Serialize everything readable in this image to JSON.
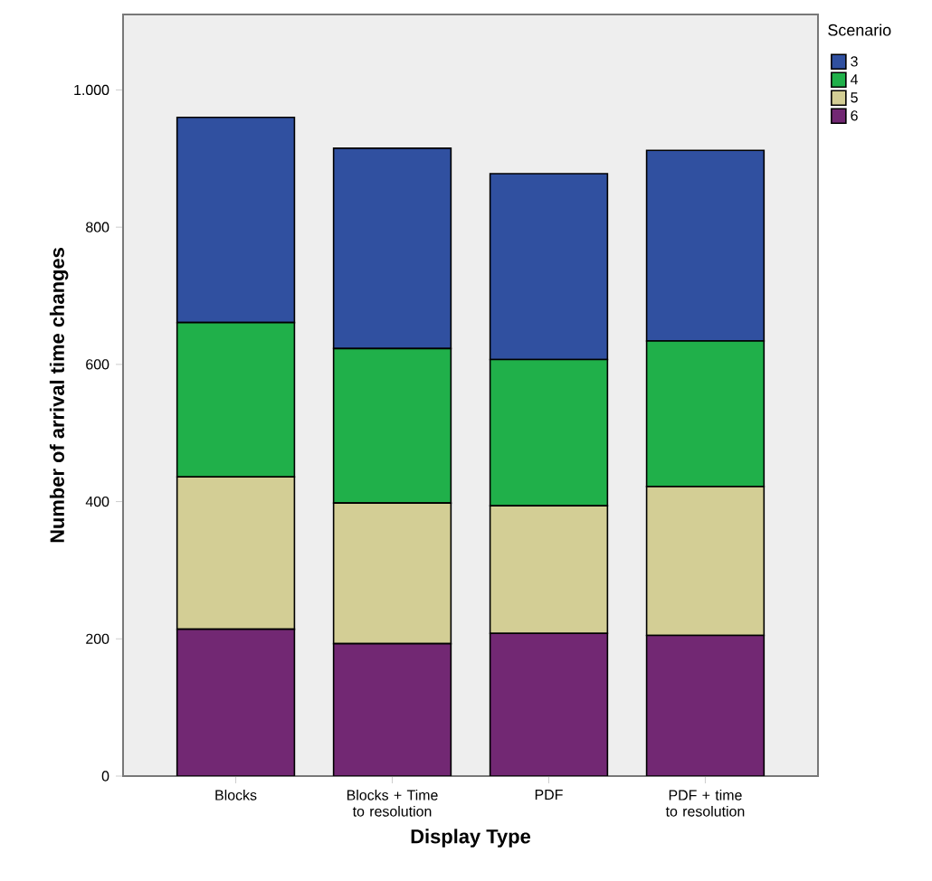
{
  "chart_data": {
    "type": "bar",
    "stacked": true,
    "xlabel": "Display Type",
    "ylabel": "Number of arrival time changes",
    "legend_title": "Scenario",
    "legend": "top right",
    "categories": [
      "Blocks",
      "Blocks + Time to resolution",
      "PDF",
      "PDF + time to resolution"
    ],
    "series": [
      {
        "name": "6",
        "color": "#722873",
        "values": [
          214,
          193,
          208,
          205
        ]
      },
      {
        "name": "5",
        "color": "#d3ce95",
        "values": [
          222,
          205,
          186,
          217
        ]
      },
      {
        "name": "4",
        "color": "#20b04a",
        "values": [
          225,
          225,
          213,
          212
        ]
      },
      {
        "name": "3",
        "color": "#3050a0",
        "values": [
          299,
          292,
          271,
          278
        ]
      }
    ],
    "ylim": [
      0,
      1110
    ],
    "yticks": [
      0,
      200,
      400,
      600,
      800,
      {
        "value": 1000,
        "label": "1.000"
      }
    ]
  }
}
